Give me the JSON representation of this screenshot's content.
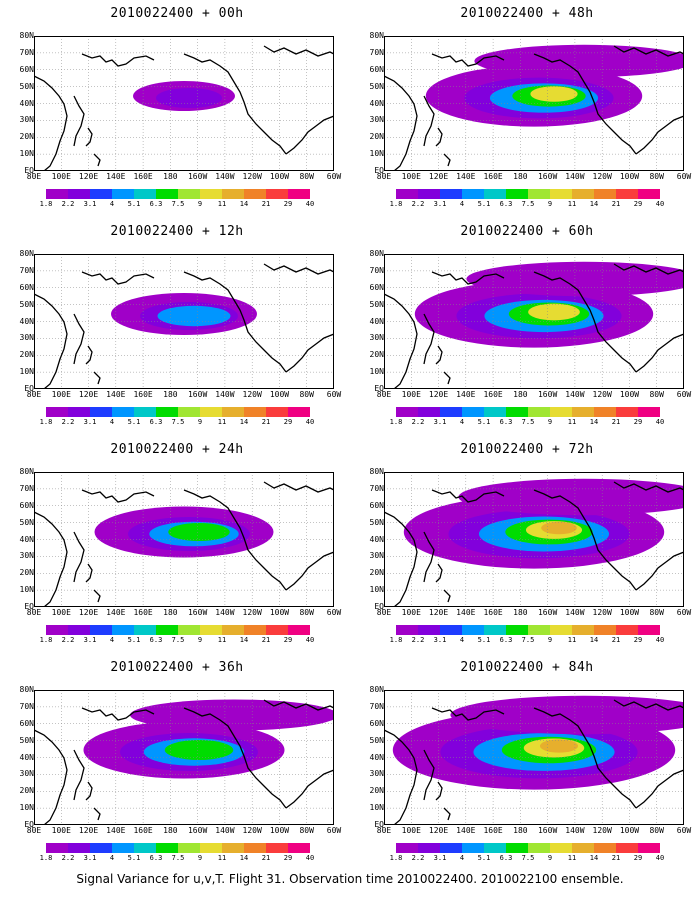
{
  "footer": "Signal Variance for u,v,T. Flight 31. Observation time 2010022400. 2010022100 ensemble.",
  "lat_labels": [
    "80N",
    "70N",
    "60N",
    "50N",
    "40N",
    "30N",
    "20N",
    "10N",
    "EQ"
  ],
  "lon_labels": [
    "80E",
    "100E",
    "120E",
    "140E",
    "160E",
    "180",
    "160W",
    "140W",
    "120W",
    "100W",
    "80W",
    "60W"
  ],
  "colorbar": {
    "labels": [
      "1.8",
      "2.2",
      "3.1",
      "4",
      "5.1",
      "6.3",
      "7.5",
      "9",
      "11",
      "14",
      "21",
      "29",
      "40"
    ],
    "colors": [
      "#a000c8",
      "#8200dc",
      "#1e3cff",
      "#0096ff",
      "#00c8c8",
      "#00dc00",
      "#a0e632",
      "#e6dc32",
      "#e6af2d",
      "#f08228",
      "#fa3c3c",
      "#f00082"
    ]
  },
  "panels": [
    {
      "id": "p00",
      "title": "2010022400 + 00h",
      "intensity": 0.1
    },
    {
      "id": "p48",
      "title": "2010022400 + 48h",
      "intensity": 0.62
    },
    {
      "id": "p12",
      "title": "2010022400 + 12h",
      "intensity": 0.3
    },
    {
      "id": "p60",
      "title": "2010022400 + 60h",
      "intensity": 0.72
    },
    {
      "id": "p24",
      "title": "2010022400 + 24h",
      "intensity": 0.45
    },
    {
      "id": "p72",
      "title": "2010022400 + 72h",
      "intensity": 0.82
    },
    {
      "id": "p36",
      "title": "2010022400 + 36h",
      "intensity": 0.55
    },
    {
      "id": "p84",
      "title": "2010022400 + 84h",
      "intensity": 0.92
    }
  ]
}
